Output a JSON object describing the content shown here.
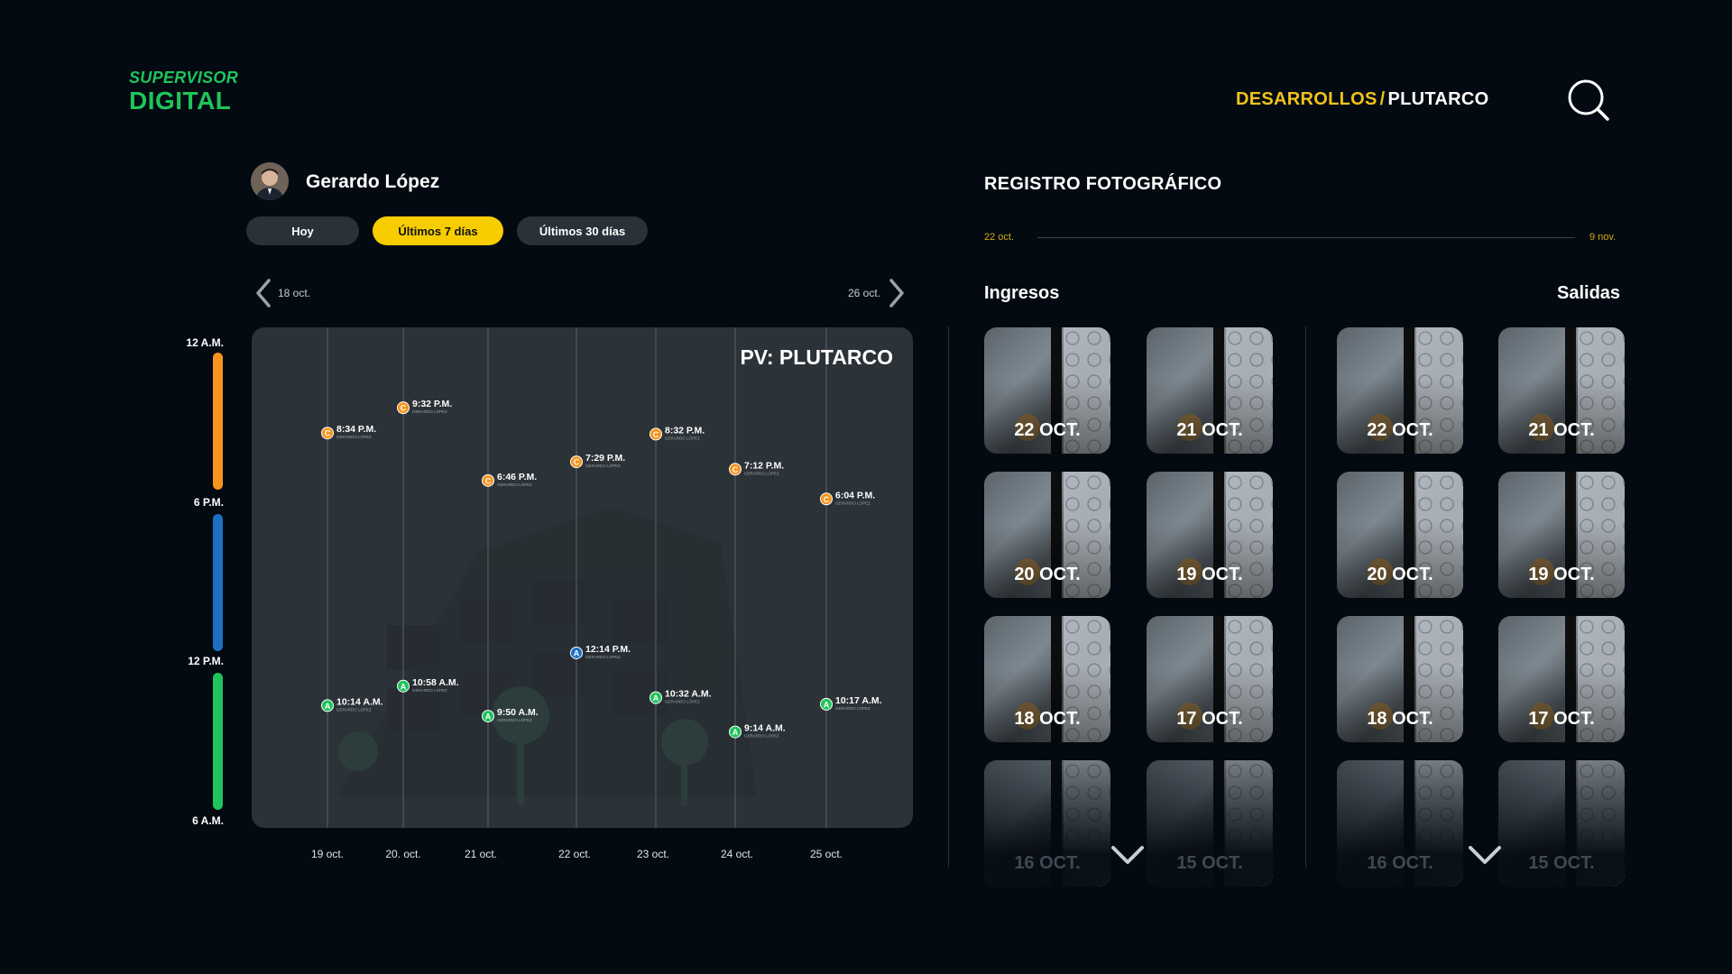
{
  "header": {
    "logo_top": "SUPERVISOR",
    "logo_bottom": "DIGITAL",
    "breadcrumb_parent": "DESARROLLOS",
    "breadcrumb_sep": "/",
    "breadcrumb_current": "PLUTARCO"
  },
  "user": {
    "name": "Gerardo López"
  },
  "filters": [
    {
      "label": "Hoy",
      "active": false
    },
    {
      "label": "Últimos 7 días",
      "active": true
    },
    {
      "label": "Últimos 30 días",
      "active": false
    }
  ],
  "date_nav": {
    "prev": "18 oct.",
    "next": "26 oct."
  },
  "time_axis": [
    "12 A.M.",
    "6 P.M.",
    "12 P.M.",
    "6 A.M."
  ],
  "colors": {
    "orange": "#f7941d",
    "blue": "#1d6fc4",
    "green": "#1fc45a",
    "yellow": "#f7cd00"
  },
  "chart_data": {
    "type": "scatter",
    "title": "PV: PLUTARCO",
    "categories": [
      "19 oct.",
      "20. oct.",
      "21 oct.",
      "22 oct.",
      "23 oct.",
      "24 oct.",
      "25 oct."
    ],
    "y_range_hours": [
      6,
      24
    ],
    "y_tick_labels": [
      "12 A.M.",
      "6 P.M.",
      "12 P.M.",
      "6 A.M."
    ],
    "person_label": "GERARDO LÓPEZ",
    "points": [
      {
        "day": "19 oct.",
        "hour": 20.57,
        "time": "8:34 P.M.",
        "letter": "C",
        "color": "#f7941d"
      },
      {
        "day": "20. oct.",
        "hour": 21.53,
        "time": "9:32 P.M.",
        "letter": "C",
        "color": "#f7941d"
      },
      {
        "day": "21 oct.",
        "hour": 18.77,
        "time": "6:46 P.M.",
        "letter": "C",
        "color": "#f7941d"
      },
      {
        "day": "22 oct.",
        "hour": 19.48,
        "time": "7:29 P.M.",
        "letter": "C",
        "color": "#f7941d"
      },
      {
        "day": "23 oct.",
        "hour": 20.53,
        "time": "8:32 P.M.",
        "letter": "C",
        "color": "#f7941d"
      },
      {
        "day": "24 oct.",
        "hour": 19.2,
        "time": "7:12 P.M.",
        "letter": "C",
        "color": "#f7941d"
      },
      {
        "day": "25 oct.",
        "hour": 18.07,
        "time": "6:04 P.M.",
        "letter": "C",
        "color": "#f7941d"
      },
      {
        "day": "22 oct.",
        "hour": 12.23,
        "time": "12:14 P.M.",
        "letter": "A",
        "color": "#1d6fc4"
      },
      {
        "day": "19 oct.",
        "hour": 10.23,
        "time": "10:14 A.M.",
        "letter": "A",
        "color": "#1fc45a"
      },
      {
        "day": "20. oct.",
        "hour": 10.97,
        "time": "10:58 A.M.",
        "letter": "A",
        "color": "#1fc45a"
      },
      {
        "day": "21 oct.",
        "hour": 9.83,
        "time": "9:50 A.M.",
        "letter": "A",
        "color": "#1fc45a"
      },
      {
        "day": "23 oct.",
        "hour": 10.53,
        "time": "10:32 A.M.",
        "letter": "A",
        "color": "#1fc45a"
      },
      {
        "day": "24 oct.",
        "hour": 9.23,
        "time": "9:14 A.M.",
        "letter": "A",
        "color": "#1fc45a"
      },
      {
        "day": "25 oct.",
        "hour": 10.28,
        "time": "10:17 A.M.",
        "letter": "A",
        "color": "#1fc45a"
      }
    ]
  },
  "photo_log": {
    "title": "REGISTRO FOTOGRÁFICO",
    "range_start": "22 oct.",
    "range_end": "9 nov.",
    "ingresos_title": "Ingresos",
    "salidas_title": "Salidas",
    "ingresos": [
      "22 OCT.",
      "21 OCT.",
      "20 OCT.",
      "19 OCT.",
      "18 OCT.",
      "17 OCT.",
      "16 OCT.",
      "15 OCT."
    ],
    "salidas": [
      "22 OCT.",
      "21 OCT.",
      "20 OCT.",
      "19 OCT.",
      "18 OCT.",
      "17 OCT.",
      "16 OCT.",
      "15 OCT."
    ]
  }
}
